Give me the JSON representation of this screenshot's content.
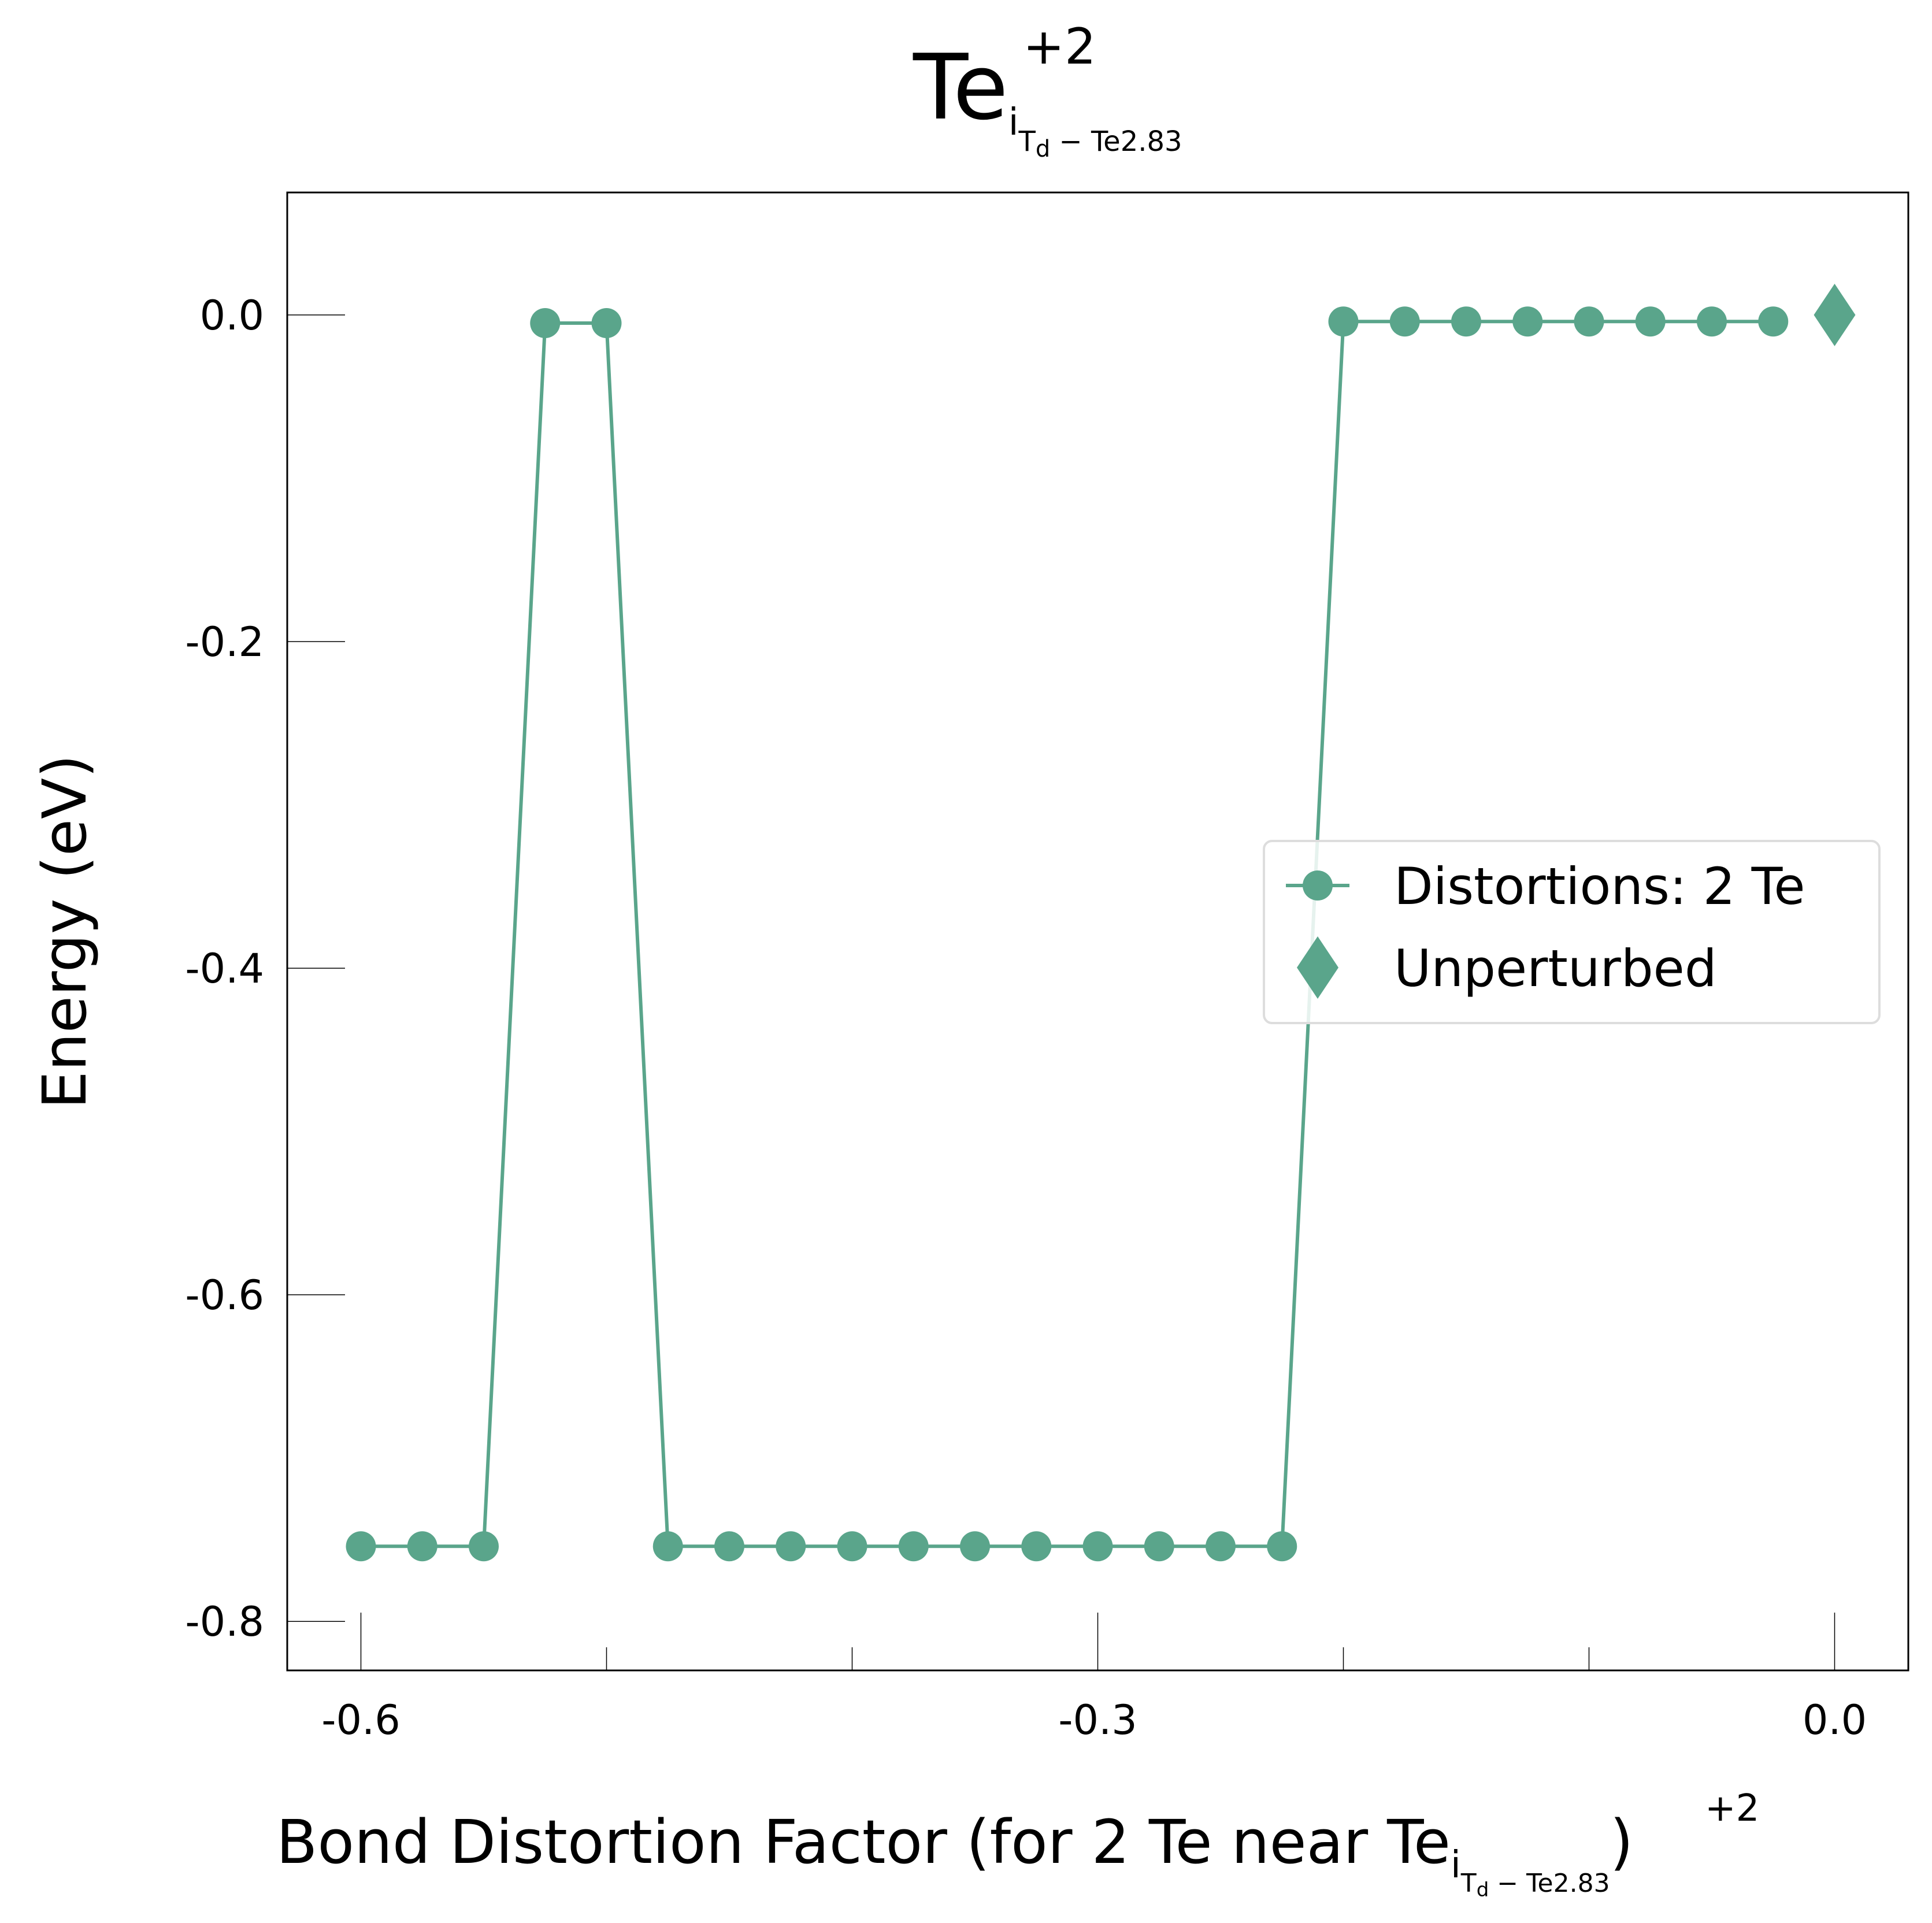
{
  "title": {
    "base": "Te",
    "sub": "i",
    "subsub": "T",
    "subsubsub": "d",
    "subtail": " − Te2.83",
    "sup": "+2"
  },
  "xlabel": {
    "prefix": "Bond Distortion Factor (for 2 Te near Te",
    "sub": "i",
    "subsub": "T",
    "subsubsub": "d",
    "subtail": " − Te2.83",
    "sup": "+2",
    "suffix": ")"
  },
  "ylabel": "Energy (eV)",
  "chart_data": {
    "type": "line",
    "x_ticks": [
      -0.6,
      -0.3,
      0.0
    ],
    "x_tick_labels": [
      "-0.6",
      "-0.3",
      "0.0"
    ],
    "x_minor_ticks": [
      -0.5,
      -0.4,
      -0.2,
      -0.1
    ],
    "y_ticks": [
      0.0,
      -0.2,
      -0.4,
      -0.6,
      -0.8
    ],
    "y_tick_labels": [
      "0.0",
      "-0.2",
      "-0.4",
      "-0.6",
      "-0.8"
    ],
    "xlim": [
      -0.63,
      0.03
    ],
    "ylim": [
      -0.83,
      0.075
    ],
    "grid": false,
    "legend_position": "center-right",
    "color": "#5aa58b",
    "series": [
      {
        "name": "Distortions: 2 Te",
        "marker": "circle",
        "x": [
          -0.6,
          -0.575,
          -0.55,
          -0.525,
          -0.5,
          -0.475,
          -0.45,
          -0.425,
          -0.4,
          -0.375,
          -0.35,
          -0.325,
          -0.3,
          -0.275,
          -0.25,
          -0.225,
          -0.2,
          -0.175,
          -0.15,
          -0.125,
          -0.1,
          -0.075,
          -0.05,
          -0.025
        ],
        "y": [
          -0.754,
          -0.754,
          -0.754,
          -0.005,
          -0.005,
          -0.754,
          -0.754,
          -0.754,
          -0.754,
          -0.754,
          -0.754,
          -0.754,
          -0.754,
          -0.754,
          -0.754,
          -0.754,
          -0.004,
          -0.004,
          -0.004,
          -0.004,
          -0.004,
          -0.004,
          -0.004,
          -0.004
        ]
      },
      {
        "name": "Unperturbed",
        "marker": "diamond",
        "x": [
          0.0
        ],
        "y": [
          0.0
        ]
      }
    ]
  }
}
